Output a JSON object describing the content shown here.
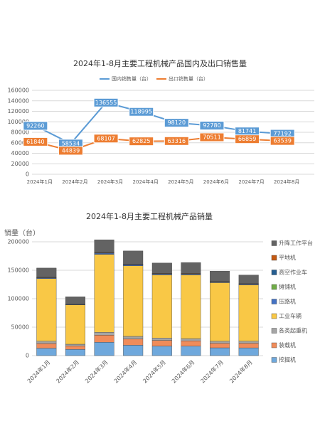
{
  "chart_data": [
    {
      "type": "line",
      "title": "2024年1-8月主要工程机械产品国内及出口销售量",
      "categories": [
        "2024年1月",
        "2024年2月",
        "2024年3月",
        "2024年4月",
        "2024年5月",
        "2024年6月",
        "2024年7月",
        "2024年8月"
      ],
      "series": [
        {
          "name": "国内销售量（台）",
          "color": "#5b9bd5",
          "values": [
            92260,
            58534,
            136555,
            118995,
            98120,
            92780,
            81741,
            77192
          ]
        },
        {
          "name": "出口销售量（台）",
          "color": "#ed7d31",
          "values": [
            61840,
            44839,
            68107,
            62825,
            63316,
            70511,
            66859,
            63539
          ]
        }
      ],
      "ylim": [
        0,
        160000
      ],
      "yticks": [
        0,
        20000,
        40000,
        60000,
        80000,
        100000,
        120000,
        140000,
        160000
      ],
      "grid": true,
      "legend": "top",
      "data_labels": true
    },
    {
      "type": "stacked-bar",
      "title": "2024年1-8月主要工程机械产品销量",
      "y_label": "销量（台）",
      "categories": [
        "2024年1月",
        "2024年2月",
        "2024年3月",
        "2024年4月",
        "2024年5月",
        "2024年6月",
        "2024年7月",
        "2024年8月"
      ],
      "series": [
        {
          "name": "挖掘机",
          "color": "#6fa8dc",
          "values": [
            13000,
            11000,
            23500,
            18300,
            16700,
            16600,
            13700,
            13600
          ]
        },
        {
          "name": "装载机",
          "color": "#f08c5a",
          "values": [
            8300,
            6000,
            12500,
            11000,
            10000,
            9300,
            8000,
            8200
          ]
        },
        {
          "name": "各类起重机",
          "color": "#a5a5a5",
          "values": [
            4000,
            3000,
            5000,
            4500,
            4200,
            4000,
            3500,
            3500
          ]
        },
        {
          "name": "工业车辆",
          "color": "#f9c846",
          "values": [
            110000,
            69000,
            137000,
            124000,
            111000,
            112000,
            103000,
            99000
          ]
        },
        {
          "name": "压路机",
          "color": "#4472c4",
          "values": [
            1500,
            800,
            2000,
            1800,
            1500,
            1400,
            1200,
            1300
          ]
        },
        {
          "name": "摊铺机",
          "color": "#70ad47",
          "values": [
            200,
            100,
            300,
            250,
            200,
            200,
            150,
            150
          ]
        },
        {
          "name": "高空作业车",
          "color": "#255e91",
          "values": [
            300,
            200,
            500,
            400,
            400,
            400,
            300,
            300
          ]
        },
        {
          "name": "平地机",
          "color": "#c55a11",
          "values": [
            600,
            400,
            800,
            700,
            700,
            700,
            600,
            600
          ]
        },
        {
          "name": "升降工作平台",
          "color": "#636363",
          "values": [
            16000,
            13000,
            22000,
            23000,
            18000,
            19000,
            18000,
            15000
          ]
        }
      ],
      "ylim": [
        0,
        210000
      ],
      "yticks": [
        0,
        50000,
        100000,
        150000,
        200000
      ],
      "grid": true,
      "legend": "right"
    }
  ]
}
